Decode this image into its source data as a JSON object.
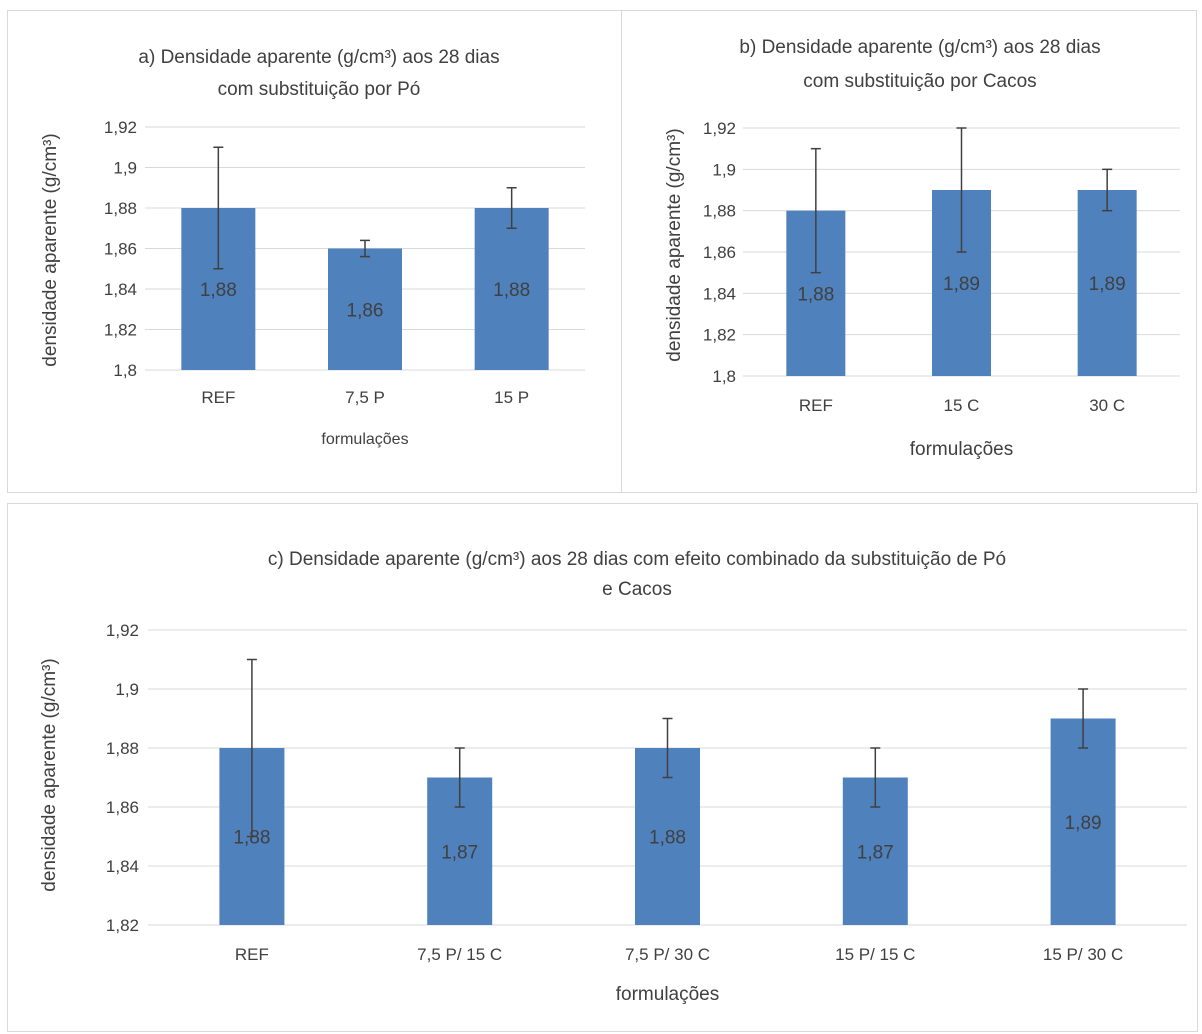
{
  "colors": {
    "bar": "#4F81BD",
    "grid": "#d9d9d9",
    "text": "#404040",
    "error_bar": "#404040",
    "panel_border": "#d9d9d9"
  },
  "chart_data": [
    {
      "type": "bar",
      "title": [
        "a) Densidade aparente (g/cm³) aos 28 dias",
        "com substituição por Pó"
      ],
      "xlabel": "formulações",
      "ylabel": "densidade aparente (g/cm³)",
      "categories": [
        "REF",
        "7,5 P",
        "15 P"
      ],
      "values": [
        1.88,
        1.86,
        1.88
      ],
      "value_labels": [
        "1,88",
        "1,86",
        "1,88"
      ],
      "error_upper": [
        1.91,
        1.864,
        1.89
      ],
      "error_lower": [
        1.85,
        1.856,
        1.87
      ],
      "ylim": [
        1.8,
        1.92
      ],
      "yticks": [
        1.8,
        1.82,
        1.84,
        1.86,
        1.88,
        1.9,
        1.92
      ],
      "ytick_labels": [
        "1,8",
        "1,82",
        "1,84",
        "1,86",
        "1,88",
        "1,9",
        "1,92"
      ],
      "grid": true
    },
    {
      "type": "bar",
      "title": [
        "b) Densidade aparente (g/cm³) aos 28 dias",
        "com substituição por Cacos"
      ],
      "xlabel": "formulações",
      "ylabel": "densidade aparente (g/cm³)",
      "categories": [
        "REF",
        "15 C",
        "30 C"
      ],
      "values": [
        1.88,
        1.89,
        1.89
      ],
      "value_labels": [
        "1,88",
        "1,89",
        "1,89"
      ],
      "error_upper": [
        1.91,
        1.92,
        1.9
      ],
      "error_lower": [
        1.85,
        1.86,
        1.88
      ],
      "ylim": [
        1.8,
        1.92
      ],
      "yticks": [
        1.8,
        1.82,
        1.84,
        1.86,
        1.88,
        1.9,
        1.92
      ],
      "ytick_labels": [
        "1,8",
        "1,82",
        "1,84",
        "1,86",
        "1,88",
        "1,9",
        "1,92"
      ],
      "grid": true
    },
    {
      "type": "bar",
      "title": [
        "c) Densidade aparente (g/cm³) aos 28 dias com efeito combinado da substituição de Pó",
        "e Cacos"
      ],
      "xlabel": "formulações",
      "ylabel": "densidade aparente (g/cm³)",
      "categories": [
        "REF",
        "7,5 P/ 15 C",
        "7,5 P/ 30 C",
        "15 P/ 15 C",
        "15 P/ 30 C"
      ],
      "values": [
        1.88,
        1.87,
        1.88,
        1.87,
        1.89
      ],
      "value_labels": [
        "1,88",
        "1,87",
        "1,88",
        "1,87",
        "1,89"
      ],
      "error_upper": [
        1.91,
        1.88,
        1.89,
        1.88,
        1.9
      ],
      "error_lower": [
        1.85,
        1.86,
        1.87,
        1.86,
        1.88
      ],
      "ylim": [
        1.82,
        1.92
      ],
      "yticks": [
        1.82,
        1.84,
        1.86,
        1.88,
        1.9,
        1.92
      ],
      "ytick_labels": [
        "1,82",
        "1,84",
        "1,86",
        "1,88",
        "1,9",
        "1,92"
      ],
      "grid": true
    }
  ]
}
